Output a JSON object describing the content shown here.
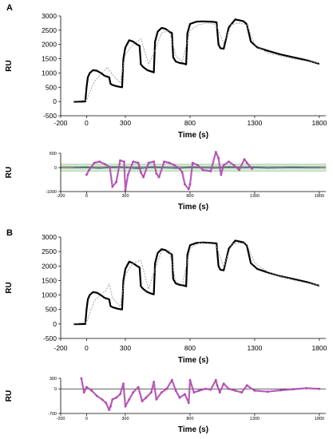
{
  "chart_data": [
    {
      "panel": "A",
      "type": "line",
      "xlabel": "Time (s)",
      "ylabel": "RU",
      "xlim": [
        -200,
        1850
      ],
      "ylim": [
        -500,
        3000
      ],
      "xticks": [
        -200,
        0,
        300,
        800,
        1300,
        1800
      ],
      "yticks": [
        -500,
        0,
        500,
        1000,
        1500,
        2000,
        2500,
        3000
      ],
      "grid": false,
      "series": [
        {
          "style": "data",
          "color": "#000000",
          "x": [
            -100,
            -10,
            0,
            10,
            25,
            50,
            80,
            110,
            140,
            175,
            185,
            200,
            230,
            260,
            275,
            285,
            300,
            330,
            360,
            390,
            410,
            420,
            440,
            470,
            500,
            520,
            530,
            550,
            580,
            610,
            640,
            660,
            670,
            690,
            720,
            750,
            770,
            780,
            800,
            850,
            900,
            960,
            1005,
            1020,
            1035,
            1060,
            1100,
            1150,
            1210,
            1230,
            1240,
            1270,
            1320,
            1400,
            1500,
            1600,
            1700,
            1800
          ],
          "y": [
            -10,
            0,
            500,
            850,
            1000,
            1100,
            1080,
            1000,
            900,
            850,
            620,
            580,
            540,
            510,
            500,
            1500,
            1900,
            2150,
            2100,
            2000,
            1950,
            1300,
            1200,
            1100,
            1050,
            1020,
            2100,
            2450,
            2580,
            2550,
            2450,
            2400,
            1550,
            1400,
            1350,
            1330,
            1300,
            2400,
            2720,
            2800,
            2810,
            2800,
            2780,
            2000,
            1870,
            1850,
            2600,
            2880,
            2820,
            2750,
            2700,
            2100,
            1900,
            1780,
            1650,
            1550,
            1450,
            1320
          ]
        },
        {
          "style": "fit",
          "color": "#9a9a9a",
          "x": [
            -100,
            0,
            60,
            120,
            160,
            200,
            260,
            300,
            360,
            420,
            480,
            530,
            580,
            640,
            690,
            740,
            800,
            870,
            940,
            1000,
            1060,
            1120,
            1180,
            1240,
            1300,
            1400,
            1500,
            1600,
            1700,
            1800
          ],
          "y": [
            0,
            50,
            700,
            1000,
            1200,
            950,
            650,
            1650,
            2000,
            2200,
            1300,
            1800,
            2400,
            2500,
            1600,
            1400,
            2500,
            2700,
            2750,
            2700,
            2050,
            2700,
            2750,
            2700,
            2000,
            1700,
            1600,
            1500,
            1420,
            1340
          ]
        }
      ]
    },
    {
      "panel": "A-residuals",
      "type": "scatter",
      "xlabel": "Time (s)",
      "ylabel": "RU",
      "xlim": [
        -200,
        1850
      ],
      "ylim": [
        -1000,
        600
      ],
      "xticks": [
        -200,
        0,
        300,
        800,
        1300,
        1800
      ],
      "yticks": [
        -1000,
        0,
        600
      ],
      "grid": false,
      "bands": [
        {
          "color": "#e06666",
          "y": [
            50,
            50
          ]
        },
        {
          "color": "#88cc88",
          "y": [
            -150,
            150
          ]
        },
        {
          "color": "#dddddd",
          "y": [
            -100,
            100
          ]
        }
      ],
      "baseline_series": {
        "color": "#2f6f6f",
        "x": [
          -100,
          0,
          100,
          200,
          300,
          400,
          500,
          600,
          700,
          800,
          900,
          1000,
          1100,
          1200,
          1300,
          1400,
          1500,
          1600,
          1700,
          1800
        ],
        "y": [
          0,
          10,
          -20,
          20,
          10,
          -30,
          20,
          0,
          -20,
          10,
          0,
          -10,
          20,
          0,
          10,
          -10,
          0,
          10,
          0,
          0
        ]
      },
      "residual_series": {
        "color": "#b04ab0",
        "x": [
          0,
          20,
          60,
          100,
          140,
          180,
          200,
          230,
          260,
          290,
          300,
          320,
          360,
          400,
          420,
          440,
          480,
          520,
          540,
          560,
          600,
          640,
          680,
          720,
          740,
          760,
          790,
          800,
          820,
          860,
          900,
          960,
          1000,
          1020,
          1040,
          1060,
          1100,
          1140,
          1180,
          1220,
          1240,
          1280
        ],
        "y": [
          -300,
          -100,
          200,
          250,
          150,
          20,
          -800,
          -600,
          300,
          250,
          -950,
          -300,
          250,
          200,
          -200,
          -400,
          200,
          250,
          -250,
          -400,
          250,
          200,
          100,
          -50,
          -200,
          -700,
          -900,
          -700,
          200,
          100,
          -100,
          -150,
          650,
          400,
          -300,
          100,
          250,
          100,
          -100,
          350,
          200,
          -50
        ]
      }
    },
    {
      "panel": "B",
      "type": "line",
      "xlabel": "Time (s)",
      "ylabel": "RU",
      "xlim": [
        -200,
        1850
      ],
      "ylim": [
        -500,
        3000
      ],
      "xticks": [
        -200,
        0,
        300,
        800,
        1300,
        1800
      ],
      "yticks": [
        -500,
        0,
        500,
        1000,
        1500,
        2000,
        2500,
        3000
      ],
      "grid": false,
      "series": [
        {
          "style": "data",
          "color": "#000000",
          "x": [
            -100,
            -10,
            0,
            10,
            25,
            50,
            80,
            110,
            140,
            175,
            185,
            200,
            230,
            260,
            275,
            285,
            300,
            330,
            360,
            390,
            410,
            420,
            440,
            470,
            500,
            520,
            530,
            550,
            580,
            610,
            640,
            660,
            670,
            690,
            720,
            750,
            770,
            780,
            800,
            850,
            900,
            960,
            1005,
            1020,
            1035,
            1060,
            1100,
            1150,
            1210,
            1230,
            1240,
            1270,
            1320,
            1400,
            1500,
            1600,
            1700,
            1800
          ],
          "y": [
            -10,
            0,
            500,
            850,
            1000,
            1100,
            1080,
            1000,
            900,
            850,
            620,
            580,
            540,
            510,
            500,
            1500,
            1900,
            2150,
            2100,
            2000,
            1950,
            1300,
            1200,
            1100,
            1050,
            1020,
            2100,
            2450,
            2580,
            2550,
            2450,
            2400,
            1550,
            1400,
            1350,
            1330,
            1300,
            2400,
            2720,
            2800,
            2810,
            2800,
            2780,
            2000,
            1870,
            1850,
            2600,
            2880,
            2820,
            2750,
            2700,
            2100,
            1900,
            1780,
            1650,
            1550,
            1450,
            1320
          ]
        },
        {
          "style": "fit",
          "color": "#9a9a9a",
          "x": [
            -100,
            0,
            60,
            120,
            150,
            175,
            200,
            260,
            300,
            360,
            420,
            480,
            530,
            580,
            640,
            690,
            740,
            800,
            870,
            940,
            1000,
            1060,
            1120,
            1180,
            1240,
            1300,
            1400,
            1500,
            1600,
            1700,
            1800
          ],
          "y": [
            0,
            60,
            800,
            1050,
            1150,
            1400,
            900,
            600,
            1700,
            2100,
            2200,
            1200,
            1900,
            2500,
            2550,
            1450,
            1350,
            2600,
            2800,
            2780,
            2750,
            1950,
            2750,
            2800,
            2750,
            2100,
            1800,
            1650,
            1520,
            1420,
            1330
          ]
        }
      ]
    },
    {
      "panel": "B-residuals",
      "type": "scatter",
      "xlabel": "Time (s)",
      "ylabel": "RU",
      "xlim": [
        -200,
        1850
      ],
      "ylim": [
        -700,
        300
      ],
      "xticks": [
        -200,
        0,
        300,
        800,
        1300,
        1800
      ],
      "yticks": [
        -700,
        0,
        300
      ],
      "grid": false,
      "residual_series": {
        "color": "#b04ab0",
        "x": [
          -40,
          -20,
          0,
          40,
          80,
          120,
          150,
          175,
          185,
          200,
          230,
          260,
          285,
          300,
          330,
          360,
          400,
          430,
          460,
          500,
          520,
          540,
          580,
          620,
          660,
          690,
          720,
          760,
          790,
          800,
          830,
          870,
          920,
          960,
          1000,
          1010,
          1030,
          1060,
          1100,
          1150,
          1200,
          1240,
          1300,
          1400,
          1500,
          1600,
          1700,
          1800
        ],
        "y": [
          300,
          -100,
          50,
          -50,
          -200,
          -300,
          -400,
          -600,
          -500,
          -300,
          -250,
          -150,
          150,
          -500,
          -300,
          -100,
          50,
          -350,
          -250,
          -100,
          200,
          -300,
          -100,
          0,
          250,
          -50,
          -250,
          -150,
          -400,
          250,
          -100,
          -50,
          0,
          -20,
          250,
          100,
          -100,
          150,
          0,
          -50,
          -100,
          100,
          -50,
          -80,
          -40,
          -10,
          20,
          0
        ]
      }
    }
  ]
}
